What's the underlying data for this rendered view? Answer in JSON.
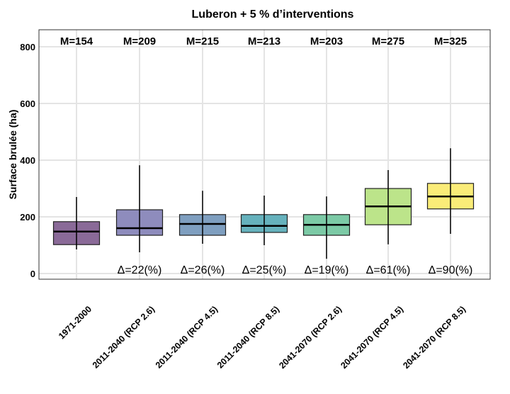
{
  "chart_data": {
    "type": "box",
    "title": "Luberon + 5 % d’interventions",
    "xlabel": "",
    "ylabel": "Surface brulée (ha)",
    "ylim": [
      -20,
      860
    ],
    "yticks": [
      0,
      200,
      400,
      600,
      800
    ],
    "grid": true,
    "categories": [
      "1971-2000",
      "2011-2040 (RCP 2.6)",
      "2011-2040 (RCP 4.5)",
      "2011-2040 (RCP 8.5)",
      "2041-2070 (RCP 2.6)",
      "2041-2070 (RCP 4.5)",
      "2041-2070 (RCP 8.5)"
    ],
    "boxes": [
      {
        "whisker_low": 85,
        "q1": 102,
        "median": 148,
        "q3": 183,
        "whisker_high": 270,
        "color": "#8a6a98"
      },
      {
        "whisker_low": 75,
        "q1": 135,
        "median": 160,
        "q3": 225,
        "whisker_high": 382,
        "color": "#8e8cbd"
      },
      {
        "whisker_low": 105,
        "q1": 135,
        "median": 175,
        "q3": 208,
        "whisker_high": 292,
        "color": "#7f9fc0"
      },
      {
        "whisker_low": 100,
        "q1": 145,
        "median": 168,
        "q3": 208,
        "whisker_high": 275,
        "color": "#66b2bd"
      },
      {
        "whisker_low": 52,
        "q1": 135,
        "median": 172,
        "q3": 208,
        "whisker_high": 272,
        "color": "#7ccaa6"
      },
      {
        "whisker_low": 103,
        "q1": 172,
        "median": 237,
        "q3": 300,
        "whisker_high": 365,
        "color": "#bce48a"
      },
      {
        "whisker_low": 140,
        "q1": 228,
        "median": 272,
        "q3": 318,
        "whisker_high": 442,
        "color": "#faec78"
      }
    ],
    "top_labels": [
      "M=154",
      "M=209",
      "M=215",
      "M=213",
      "M=203",
      "M=275",
      "M=325"
    ],
    "delta_labels": [
      "",
      "Δ=22(%)",
      "Δ=26(%)",
      "Δ=25(%)",
      "Δ=19(%)",
      "Δ=61(%)",
      "Δ=90(%)"
    ]
  }
}
